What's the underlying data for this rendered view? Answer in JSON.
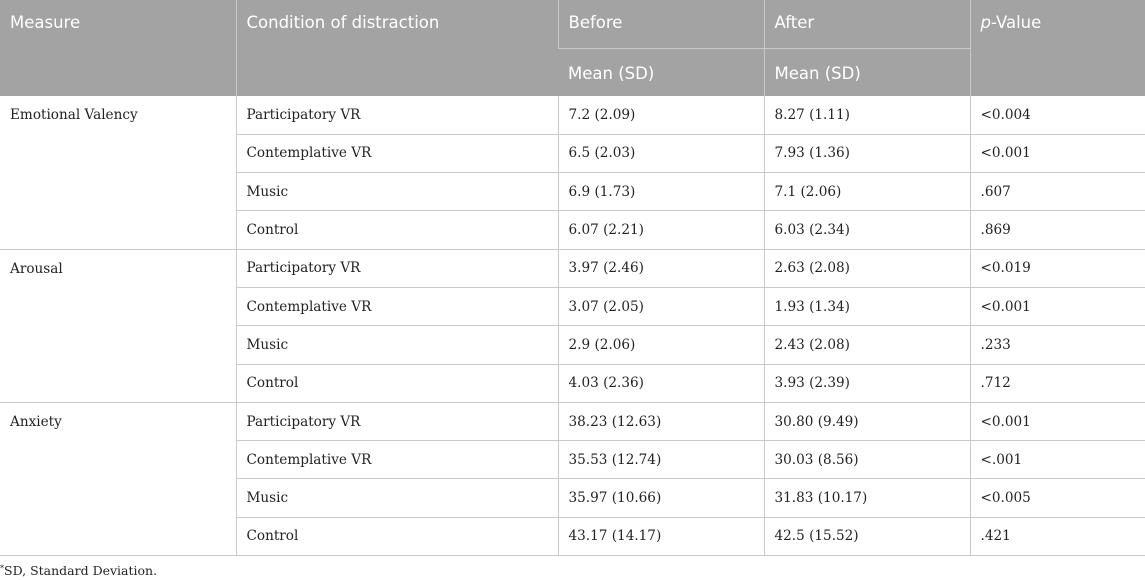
{
  "headers": {
    "measure": "Measure",
    "condition": "Condition of distraction",
    "before": "Before",
    "after": "After",
    "pvalue_italic": "p",
    "pvalue_rest": "-Value",
    "before_sub": "Mean (SD)",
    "after_sub": "Mean (SD)"
  },
  "groups": [
    {
      "measure": "Emotional Valency",
      "rows": [
        {
          "condition": "Participatory VR",
          "before": "7.2 (2.09)",
          "after": "8.27 (1.11)",
          "p": "<0.004"
        },
        {
          "condition": "Contemplative VR",
          "before": "6.5 (2.03)",
          "after": "7.93 (1.36)",
          "p": "<0.001"
        },
        {
          "condition": "Music",
          "before": "6.9 (1.73)",
          "after": "7.1 (2.06)",
          "p": ".607"
        },
        {
          "condition": "Control",
          "before": "6.07 (2.21)",
          "after": "6.03 (2.34)",
          "p": ".869"
        }
      ]
    },
    {
      "measure": "Arousal",
      "rows": [
        {
          "condition": "Participatory VR",
          "before": "3.97 (2.46)",
          "after": "2.63 (2.08)",
          "p": "<0.019"
        },
        {
          "condition": "Contemplative VR",
          "before": "3.07 (2.05)",
          "after": "1.93 (1.34)",
          "p": "<0.001"
        },
        {
          "condition": "Music",
          "before": "2.9 (2.06)",
          "after": "2.43 (2.08)",
          "p": ".233"
        },
        {
          "condition": "Control",
          "before": "4.03 (2.36)",
          "after": "3.93 (2.39)",
          "p": ".712"
        }
      ]
    },
    {
      "measure": "Anxiety",
      "rows": [
        {
          "condition": "Participatory VR",
          "before": "38.23 (12.63)",
          "after": "30.80 (9.49)",
          "p": "<0.001"
        },
        {
          "condition": "Contemplative VR",
          "before": "35.53 (12.74)",
          "after": "30.03 (8.56)",
          "p": "<.001"
        },
        {
          "condition": "Music",
          "before": "35.97 (10.66)",
          "after": "31.83 (10.17)",
          "p": "<0.005"
        },
        {
          "condition": "Control",
          "before": "43.17 (14.17)",
          "after": "42.5 (15.52)",
          "p": ".421"
        }
      ]
    }
  ],
  "footnote": {
    "marker": "*",
    "text": "SD, Standard Deviation."
  }
}
